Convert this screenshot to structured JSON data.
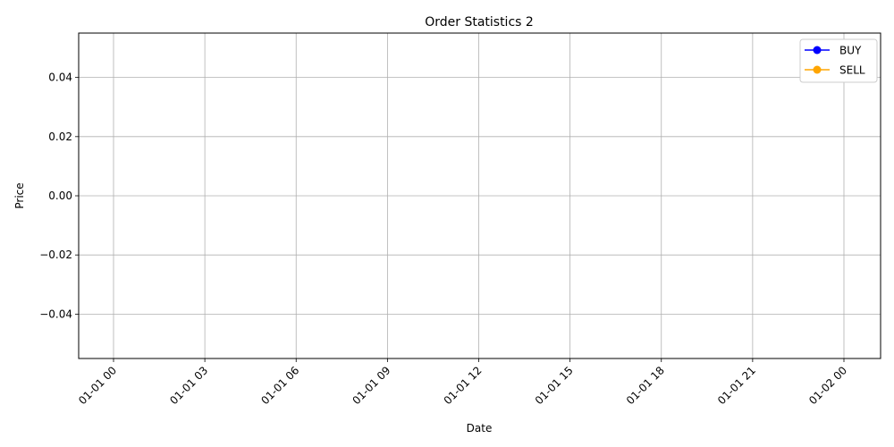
{
  "chart_data": {
    "type": "line",
    "title": "Order Statistics 2",
    "xlabel": "Date",
    "ylabel": "Price",
    "x_ticks": [
      "01-01 00",
      "01-01 03",
      "01-01 06",
      "01-01 09",
      "01-01 12",
      "01-01 15",
      "01-01 18",
      "01-01 21",
      "01-02 00"
    ],
    "y_ticks": [
      "0.04",
      "0.02",
      "0.00",
      "−0.02",
      "−0.04"
    ],
    "y_tick_values": [
      0.04,
      0.02,
      0.0,
      -0.02,
      -0.04
    ],
    "ylim": [
      -0.055,
      0.055
    ],
    "grid": true,
    "legend_position": "top-right",
    "series": [
      {
        "name": "BUY",
        "color": "#0000ff",
        "marker": "circle",
        "points": []
      },
      {
        "name": "SELL",
        "color": "#ffa500",
        "marker": "circle",
        "points": []
      }
    ]
  }
}
